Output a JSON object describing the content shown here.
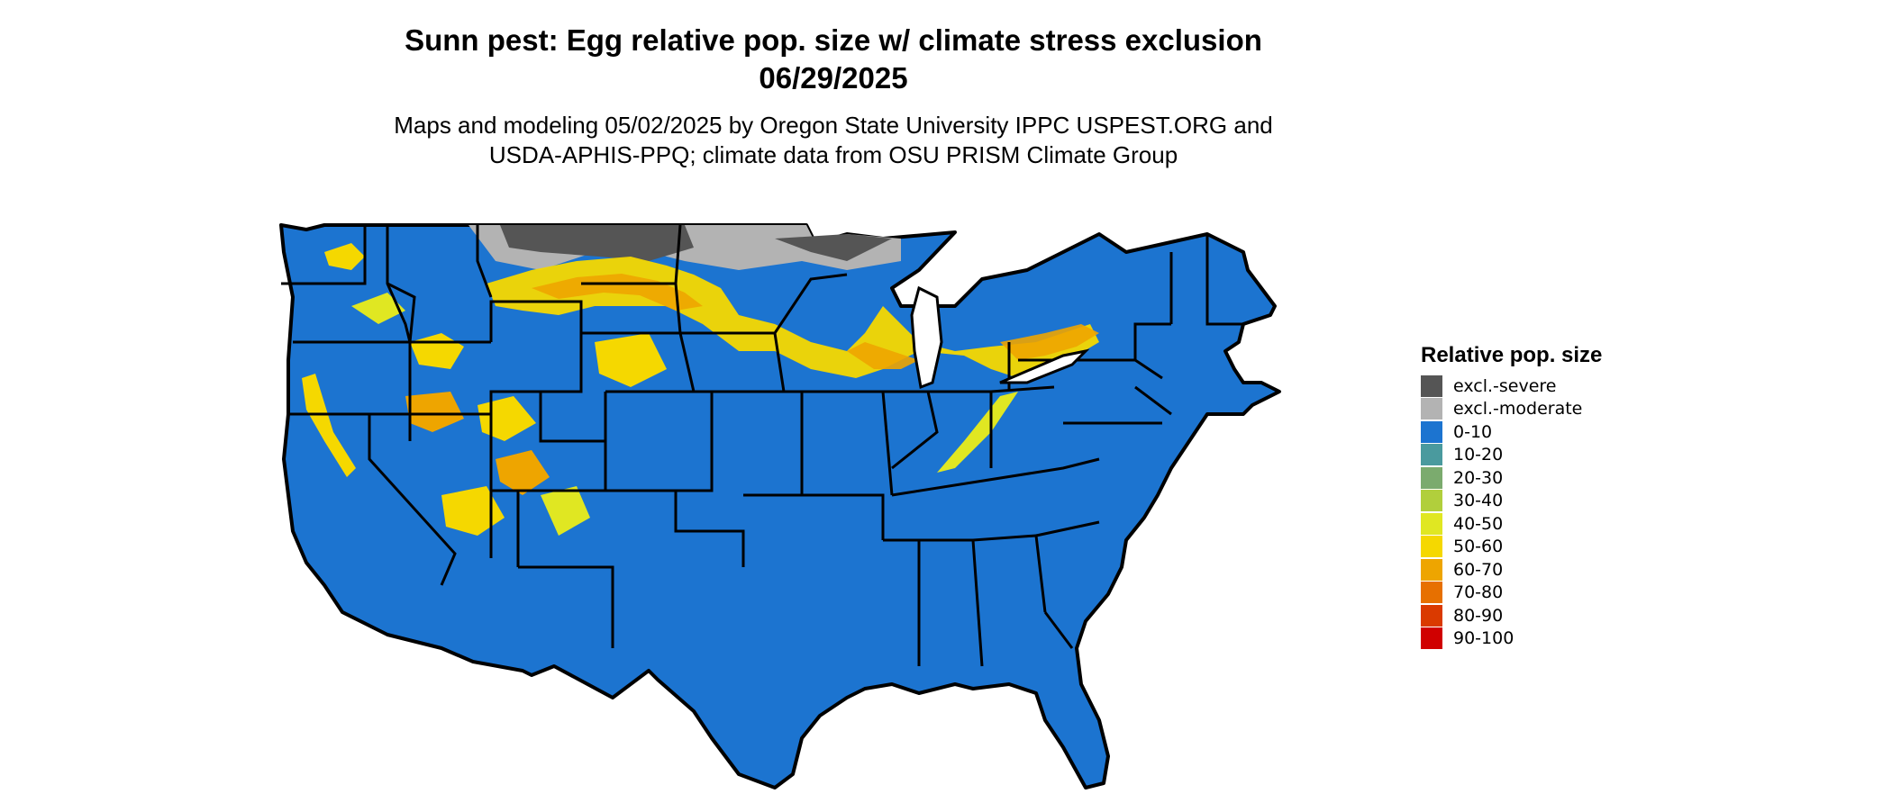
{
  "title_line1": "Sunn pest: Egg relative pop. size w/ climate stress exclusion",
  "title_line2": "06/29/2025",
  "subtitle_line1": "Maps and modeling 05/02/2025 by Oregon State University IPPC USPEST.ORG and",
  "subtitle_line2": "USDA-APHIS-PPQ; climate data from OSU PRISM Climate Group",
  "legend": {
    "title": "Relative pop. size",
    "items": [
      {
        "label": "excl.-severe",
        "color": "#555555"
      },
      {
        "label": "excl.-moderate",
        "color": "#b3b3b3"
      },
      {
        "label": "0-10",
        "color": "#1c74d0"
      },
      {
        "label": "10-20",
        "color": "#4a9a9e"
      },
      {
        "label": "20-30",
        "color": "#7bab6e"
      },
      {
        "label": "30-40",
        "color": "#b1cf3c"
      },
      {
        "label": "40-50",
        "color": "#e0e722"
      },
      {
        "label": "50-60",
        "color": "#f5d800"
      },
      {
        "label": "60-70",
        "color": "#eea500"
      },
      {
        "label": "70-80",
        "color": "#e77000"
      },
      {
        "label": "80-90",
        "color": "#da3a00"
      },
      {
        "label": "90-100",
        "color": "#d00000"
      }
    ]
  },
  "colors": {
    "base": "#1c74d0",
    "outline": "#000000"
  }
}
